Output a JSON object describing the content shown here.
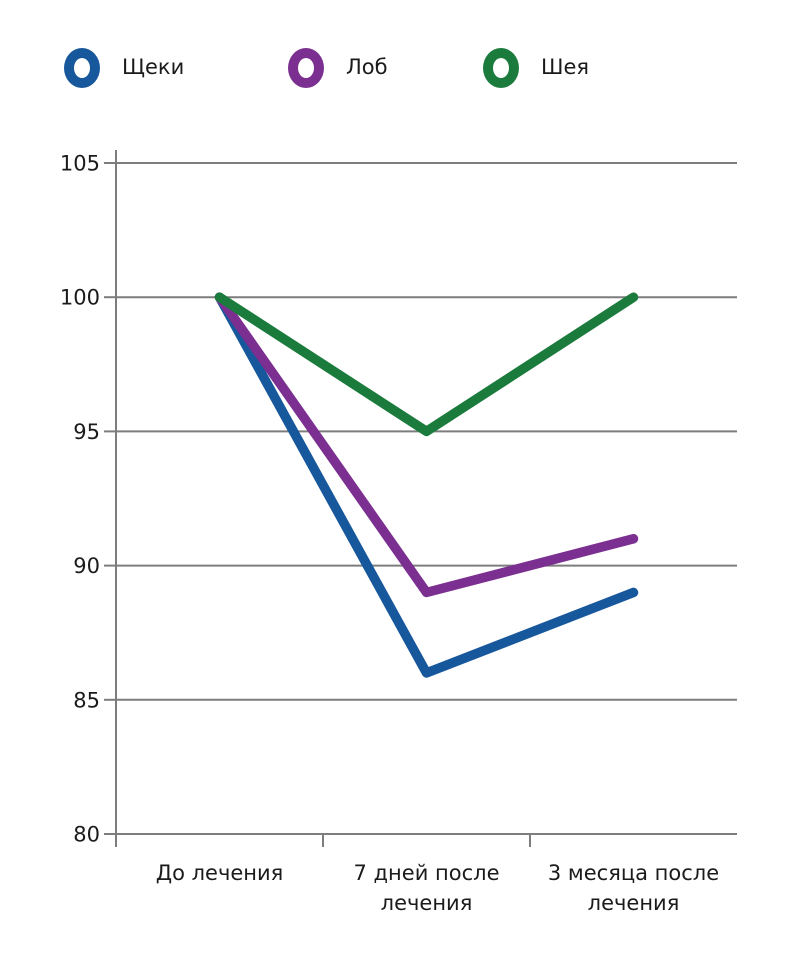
{
  "chart_data": {
    "type": "line",
    "categories": [
      "До лечения",
      "7 дней после лечения",
      "3 месяца после лечения"
    ],
    "series": [
      {
        "name": "Щеки",
        "color": "#17579B",
        "values": [
          100,
          86,
          89
        ]
      },
      {
        "name": "Лоб",
        "color": "#7B2F90",
        "values": [
          100,
          89,
          91
        ]
      },
      {
        "name": "Шея",
        "color": "#1A7B3C",
        "values": [
          100,
          95,
          100
        ]
      }
    ],
    "title": "",
    "xlabel": "",
    "ylabel": "",
    "ylim": [
      80,
      105
    ],
    "yticks": [
      80,
      85,
      90,
      95,
      100,
      105
    ],
    "grid": true,
    "legend_position": "top",
    "marker": "ring",
    "line_width": 9.5,
    "axis_color": "#7d7d7d",
    "text_color": "#1b1b1b",
    "background": "#ffffff"
  }
}
